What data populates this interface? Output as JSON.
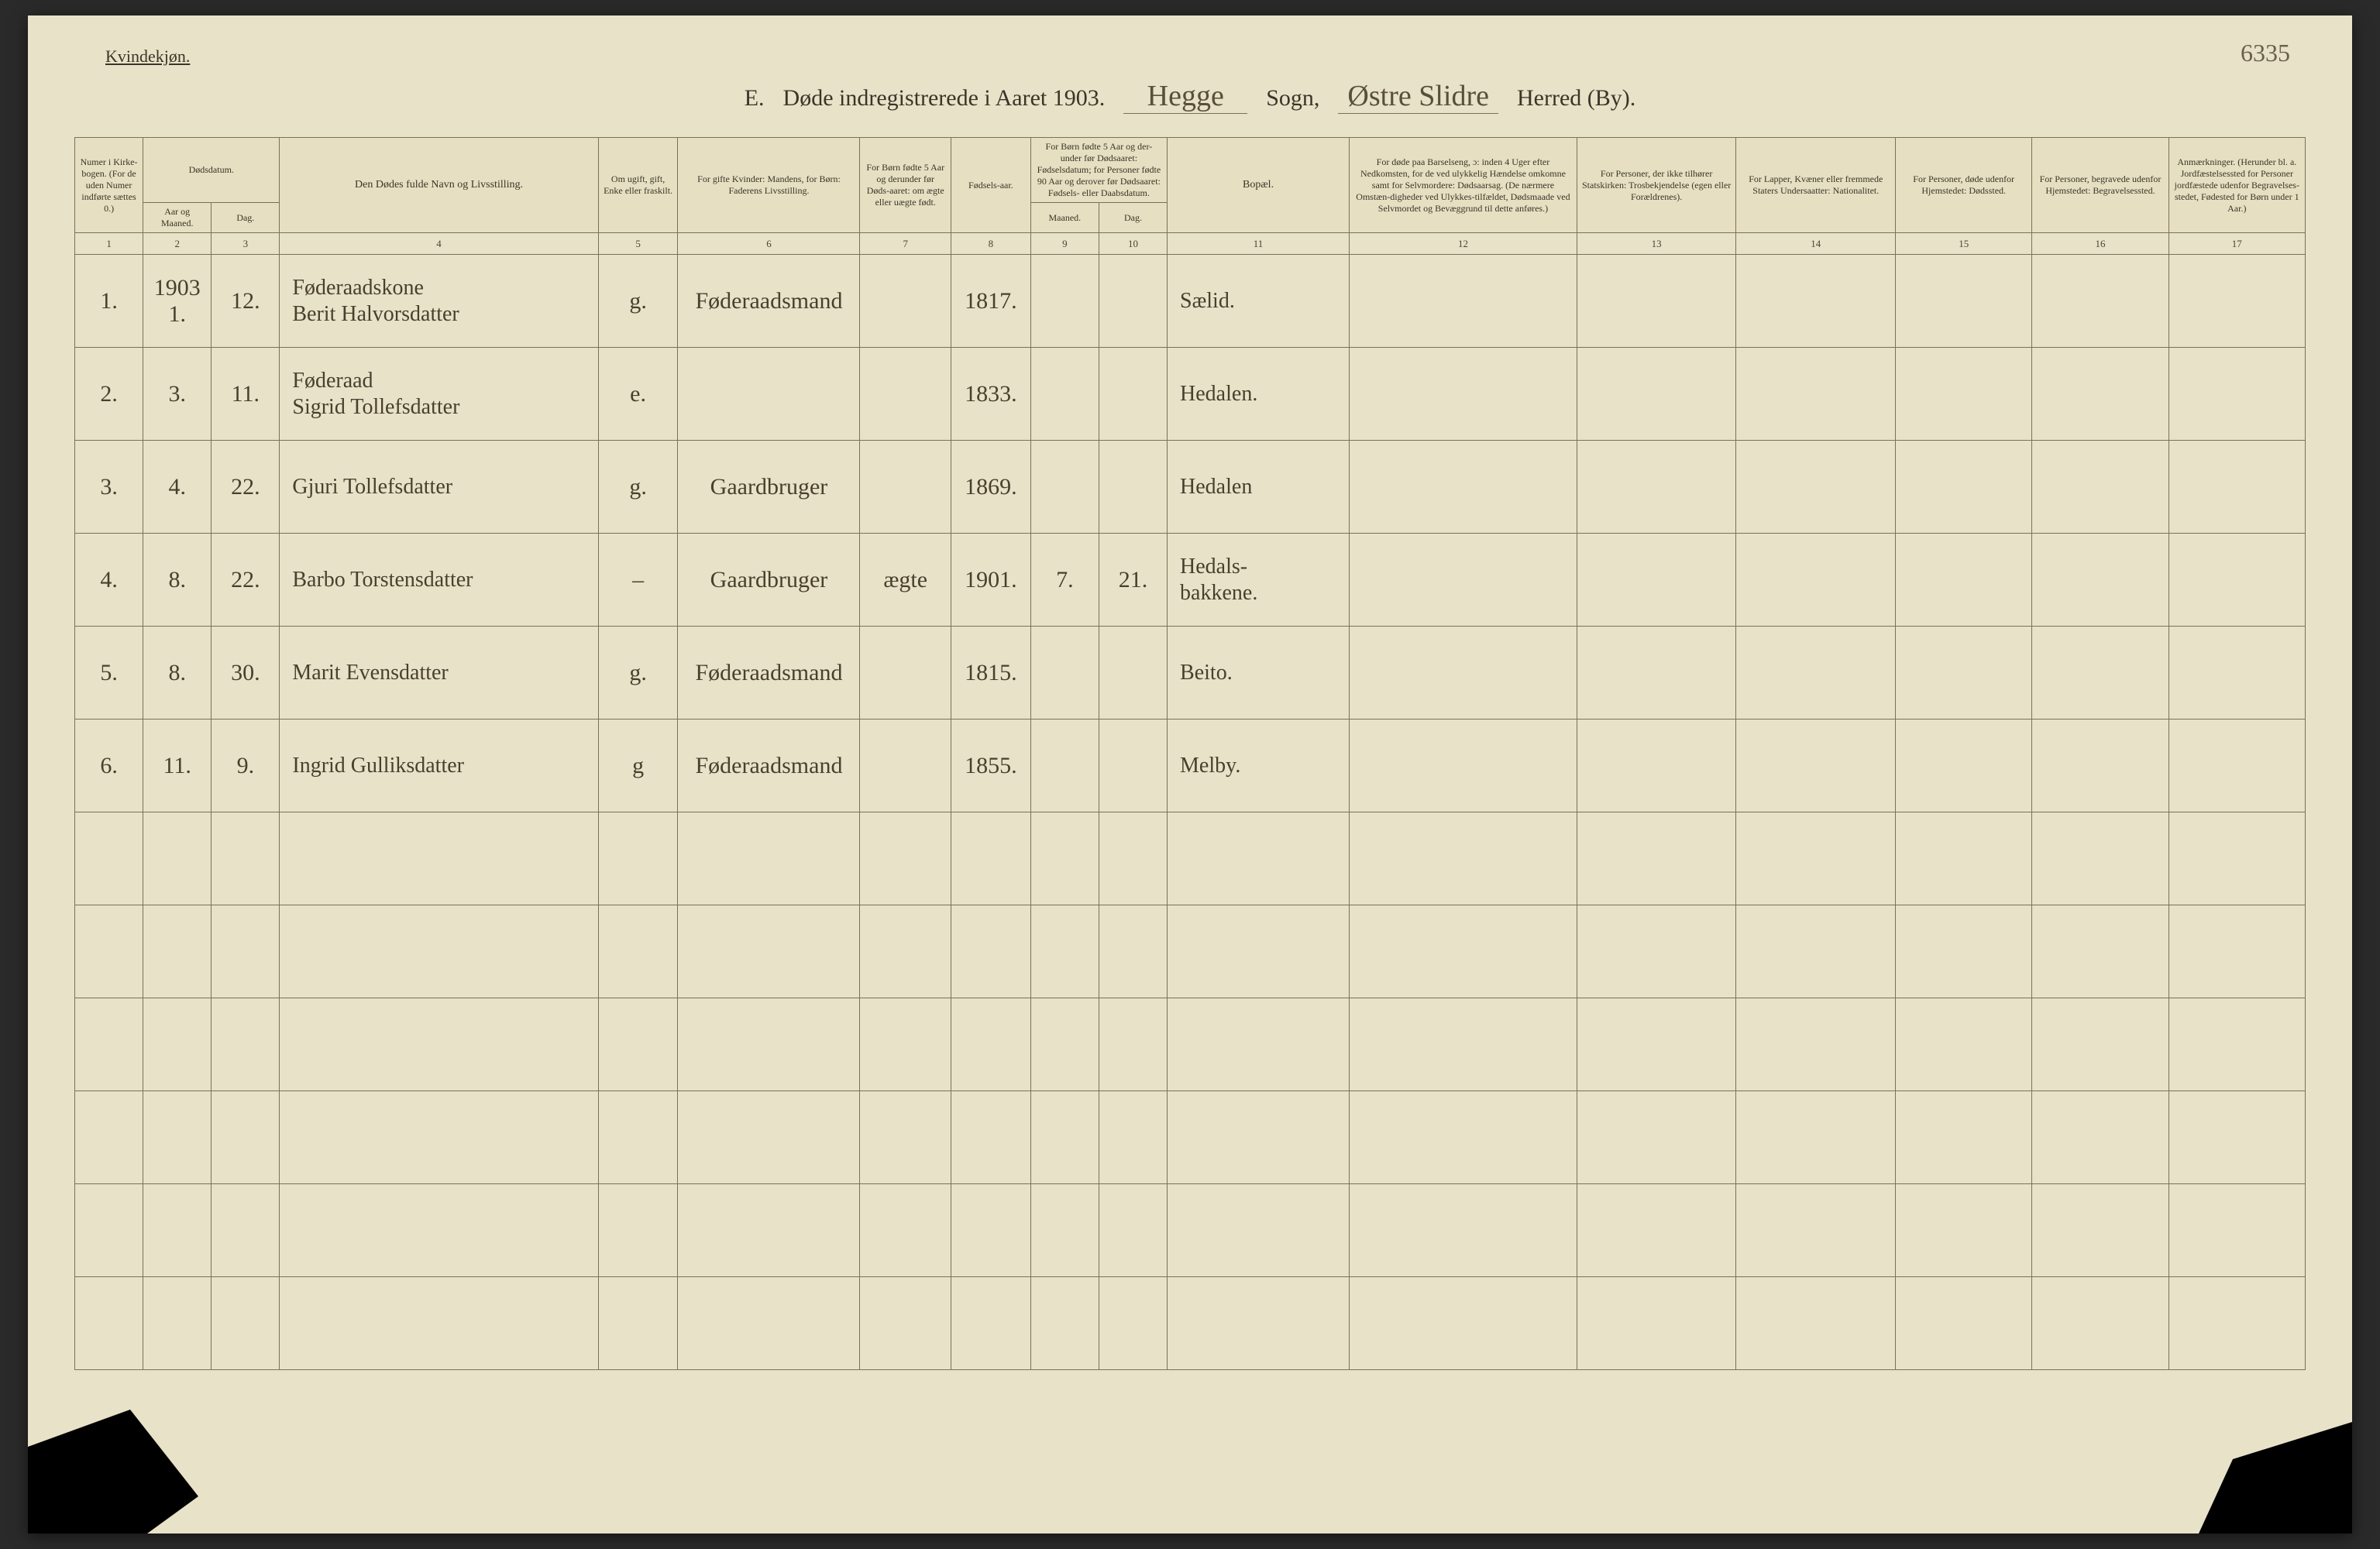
{
  "page_number": "6335",
  "gender_label": "Kvindekjøn.",
  "title": {
    "section": "E.",
    "main": "Døde indregistrerede i Aaret 1903.",
    "parish_value": "Hegge",
    "parish_label": "Sogn,",
    "district_value": "Østre Slidre",
    "district_label": "Herred (By)."
  },
  "headers": {
    "c1": "Numer i Kirke-bogen. (For de uden Numer indførte sættes 0.)",
    "c2a": "Dødsdatum.",
    "c2b": "Aar og Maaned.",
    "c3": "Dag.",
    "c4": "Den Dødes fulde Navn og Livsstilling.",
    "c5": "Om ugift, gift, Enke eller fraskilt.",
    "c6": "For gifte Kvinder: Mandens, for Børn: Faderens Livsstilling.",
    "c7": "For Børn fødte 5 Aar og derunder før Døds-aaret: om ægte eller uægte født.",
    "c8": "Fødsels-aar.",
    "c9_10": "For Børn fødte 5 Aar og der-under før Dødsaaret: Fødselsdatum; for Personer fødte 90 Aar og derover før Dødsaaret: Fødsels- eller Daabsdatum.",
    "c9": "Maaned.",
    "c10": "Dag.",
    "c11": "Bopæl.",
    "c12": "For døde paa Barselseng, ɔ: inden 4 Uger efter Nedkomsten, for de ved ulykkelig Hændelse omkomne samt for Selvmordere: Dødsaarsag. (De nærmere Omstæn-digheder ved Ulykkes-tilfældet, Dødsmaade ved Selvmordet og Bevæggrund til dette anføres.)",
    "c13": "For Personer, der ikke tilhører Statskirken: Trosbekjendelse (egen eller Forældrenes).",
    "c14": "For Lapper, Kvæner eller fremmede Staters Undersaatter: Nationalitet.",
    "c15": "For Personer, døde udenfor Hjemstedet: Dødssted.",
    "c16": "For Personer, begravede udenfor Hjemstedet: Begravelsessted.",
    "c17": "Anmærkninger. (Herunder bl. a. Jordfæstelsessted for Personer jordfæstede udenfor Begravelses-stedet, Fødested for Børn under 1 Aar.)"
  },
  "colnums": [
    "1",
    "2",
    "3",
    "4",
    "5",
    "6",
    "7",
    "8",
    "9",
    "10",
    "11",
    "12",
    "13",
    "14",
    "15",
    "16",
    "17"
  ],
  "year_note": "1903",
  "rows": [
    {
      "num": "1.",
      "month": "1.",
      "day": "12.",
      "name": "Føderaadskone\nBerit Halvorsdatter",
      "status": "g.",
      "occupation": "Føderaadsmand",
      "born_legit": "",
      "birthyear": "1817.",
      "bm": "",
      "bd": "",
      "residence": "Sælid."
    },
    {
      "num": "2.",
      "month": "3.",
      "day": "11.",
      "name": "Føderaad\nSigrid Tollefsdatter",
      "status": "e.",
      "occupation": "",
      "born_legit": "",
      "birthyear": "1833.",
      "bm": "",
      "bd": "",
      "residence": "Hedalen."
    },
    {
      "num": "3.",
      "month": "4.",
      "day": "22.",
      "name": "Gjuri Tollefsdatter",
      "status": "g.",
      "occupation": "Gaardbruger",
      "born_legit": "",
      "birthyear": "1869.",
      "bm": "",
      "bd": "",
      "residence": "Hedalen"
    },
    {
      "num": "4.",
      "month": "8.",
      "day": "22.",
      "name": "Barbo Torstensdatter",
      "status": "–",
      "occupation": "Gaardbruger",
      "born_legit": "ægte",
      "birthyear": "1901.",
      "bm": "7.",
      "bd": "21.",
      "residence": "Hedals-\nbakkene."
    },
    {
      "num": "5.",
      "month": "8.",
      "day": "30.",
      "name": "Marit Evensdatter",
      "status": "g.",
      "occupation": "Føderaadsmand",
      "born_legit": "",
      "birthyear": "1815.",
      "bm": "",
      "bd": "",
      "residence": "Beito."
    },
    {
      "num": "6.",
      "month": "11.",
      "day": "9.",
      "name": "Ingrid Gulliksdatter",
      "status": "g",
      "occupation": "Føderaadsmand",
      "born_legit": "",
      "birthyear": "1855.",
      "bm": "",
      "bd": "",
      "residence": "Melby."
    }
  ],
  "empty_row_count": 6
}
